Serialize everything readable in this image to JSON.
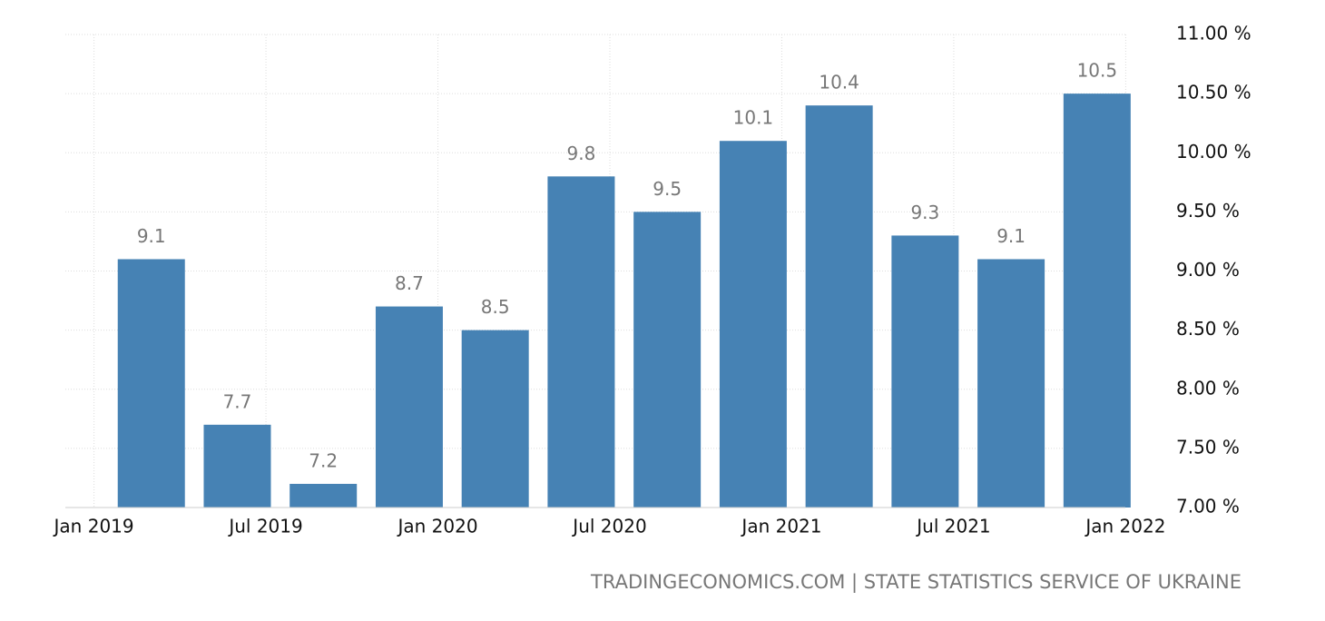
{
  "chart_data": {
    "type": "bar",
    "x": [
      "2019-03",
      "2019-06",
      "2019-09",
      "2019-12",
      "2020-03",
      "2020-06",
      "2020-09",
      "2020-12",
      "2021-03",
      "2021-06",
      "2021-09",
      "2021-12"
    ],
    "values": [
      9.1,
      7.7,
      7.2,
      8.7,
      8.5,
      9.8,
      9.5,
      10.1,
      10.4,
      9.3,
      9.1,
      10.5
    ],
    "color": "#4682b4",
    "xlim": [
      "2018-12",
      "2022-02"
    ],
    "xticks": [
      {
        "value": "2019-01",
        "label": "Jan 2019"
      },
      {
        "value": "2019-07",
        "label": "Jul 2019"
      },
      {
        "value": "2020-01",
        "label": "Jan 2020"
      },
      {
        "value": "2020-07",
        "label": "Jul 2020"
      },
      {
        "value": "2021-01",
        "label": "Jan 2021"
      },
      {
        "value": "2021-07",
        "label": "Jul 2021"
      },
      {
        "value": "2022-01",
        "label": "Jan 2022"
      }
    ],
    "ylim": [
      7,
      11
    ],
    "yticks": [
      {
        "value": 7,
        "label": "7.00 %"
      },
      {
        "value": 7.5,
        "label": "7.50 %"
      },
      {
        "value": 8,
        "label": "8.00 %"
      },
      {
        "value": 8.5,
        "label": "8.50 %"
      },
      {
        "value": 9,
        "label": "9.00 %"
      },
      {
        "value": 9.5,
        "label": "9.50 %"
      },
      {
        "value": 10,
        "label": "10.00 %"
      },
      {
        "value": 10.5,
        "label": "10.50 %"
      },
      {
        "value": 11,
        "label": "11.00 %"
      }
    ],
    "grid": true,
    "source": "TRADINGECONOMICS.COM | STATE STATISTICS SERVICE OF UKRAINE"
  }
}
